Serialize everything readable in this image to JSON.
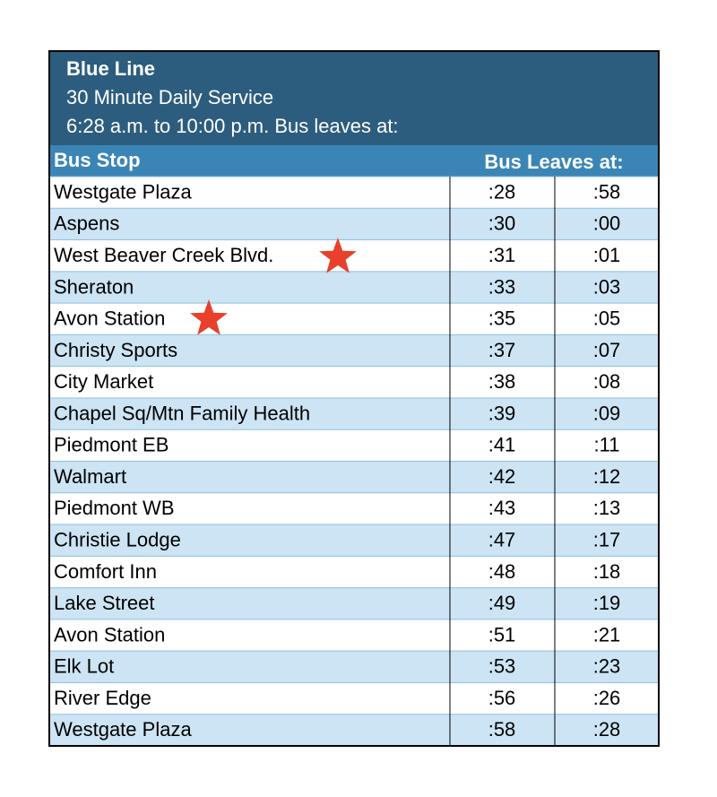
{
  "header": {
    "title": "Blue Line",
    "subtitle": "30 Minute Daily Service",
    "note": "6:28 a.m. to 10:00 p.m. Bus leaves at:"
  },
  "table": {
    "columns": [
      "Bus Stop",
      "Bus Leaves at:"
    ],
    "rows": [
      [
        "Westgate Plaza",
        ":28",
        ":58"
      ],
      [
        "Aspens",
        ":30",
        ":00"
      ],
      [
        "West Beaver Creek Blvd.",
        ":31",
        ":01"
      ],
      [
        "Sheraton",
        ":33",
        ":03"
      ],
      [
        "Avon Station",
        ":35",
        ":05"
      ],
      [
        "Christy Sports",
        ":37",
        ":07"
      ],
      [
        "City Market",
        ":38",
        ":08"
      ],
      [
        "Chapel Sq/Mtn Family Health",
        ":39",
        ":09"
      ],
      [
        "Piedmont EB",
        ":41",
        ":11"
      ],
      [
        "Walmart",
        ":42",
        ":12"
      ],
      [
        "Piedmont WB",
        ":43",
        ":13"
      ],
      [
        "Christie Lodge",
        ":47",
        ":17"
      ],
      [
        "Comfort Inn",
        ":48",
        ":18"
      ],
      [
        "Lake Street",
        ":49",
        ":19"
      ],
      [
        "Avon Station",
        ":51",
        ":21"
      ],
      [
        "Elk Lot",
        ":53",
        ":23"
      ],
      [
        "River Edge",
        ":56",
        ":26"
      ],
      [
        "Westgate Plaza",
        ":58",
        ":28"
      ]
    ]
  }
}
